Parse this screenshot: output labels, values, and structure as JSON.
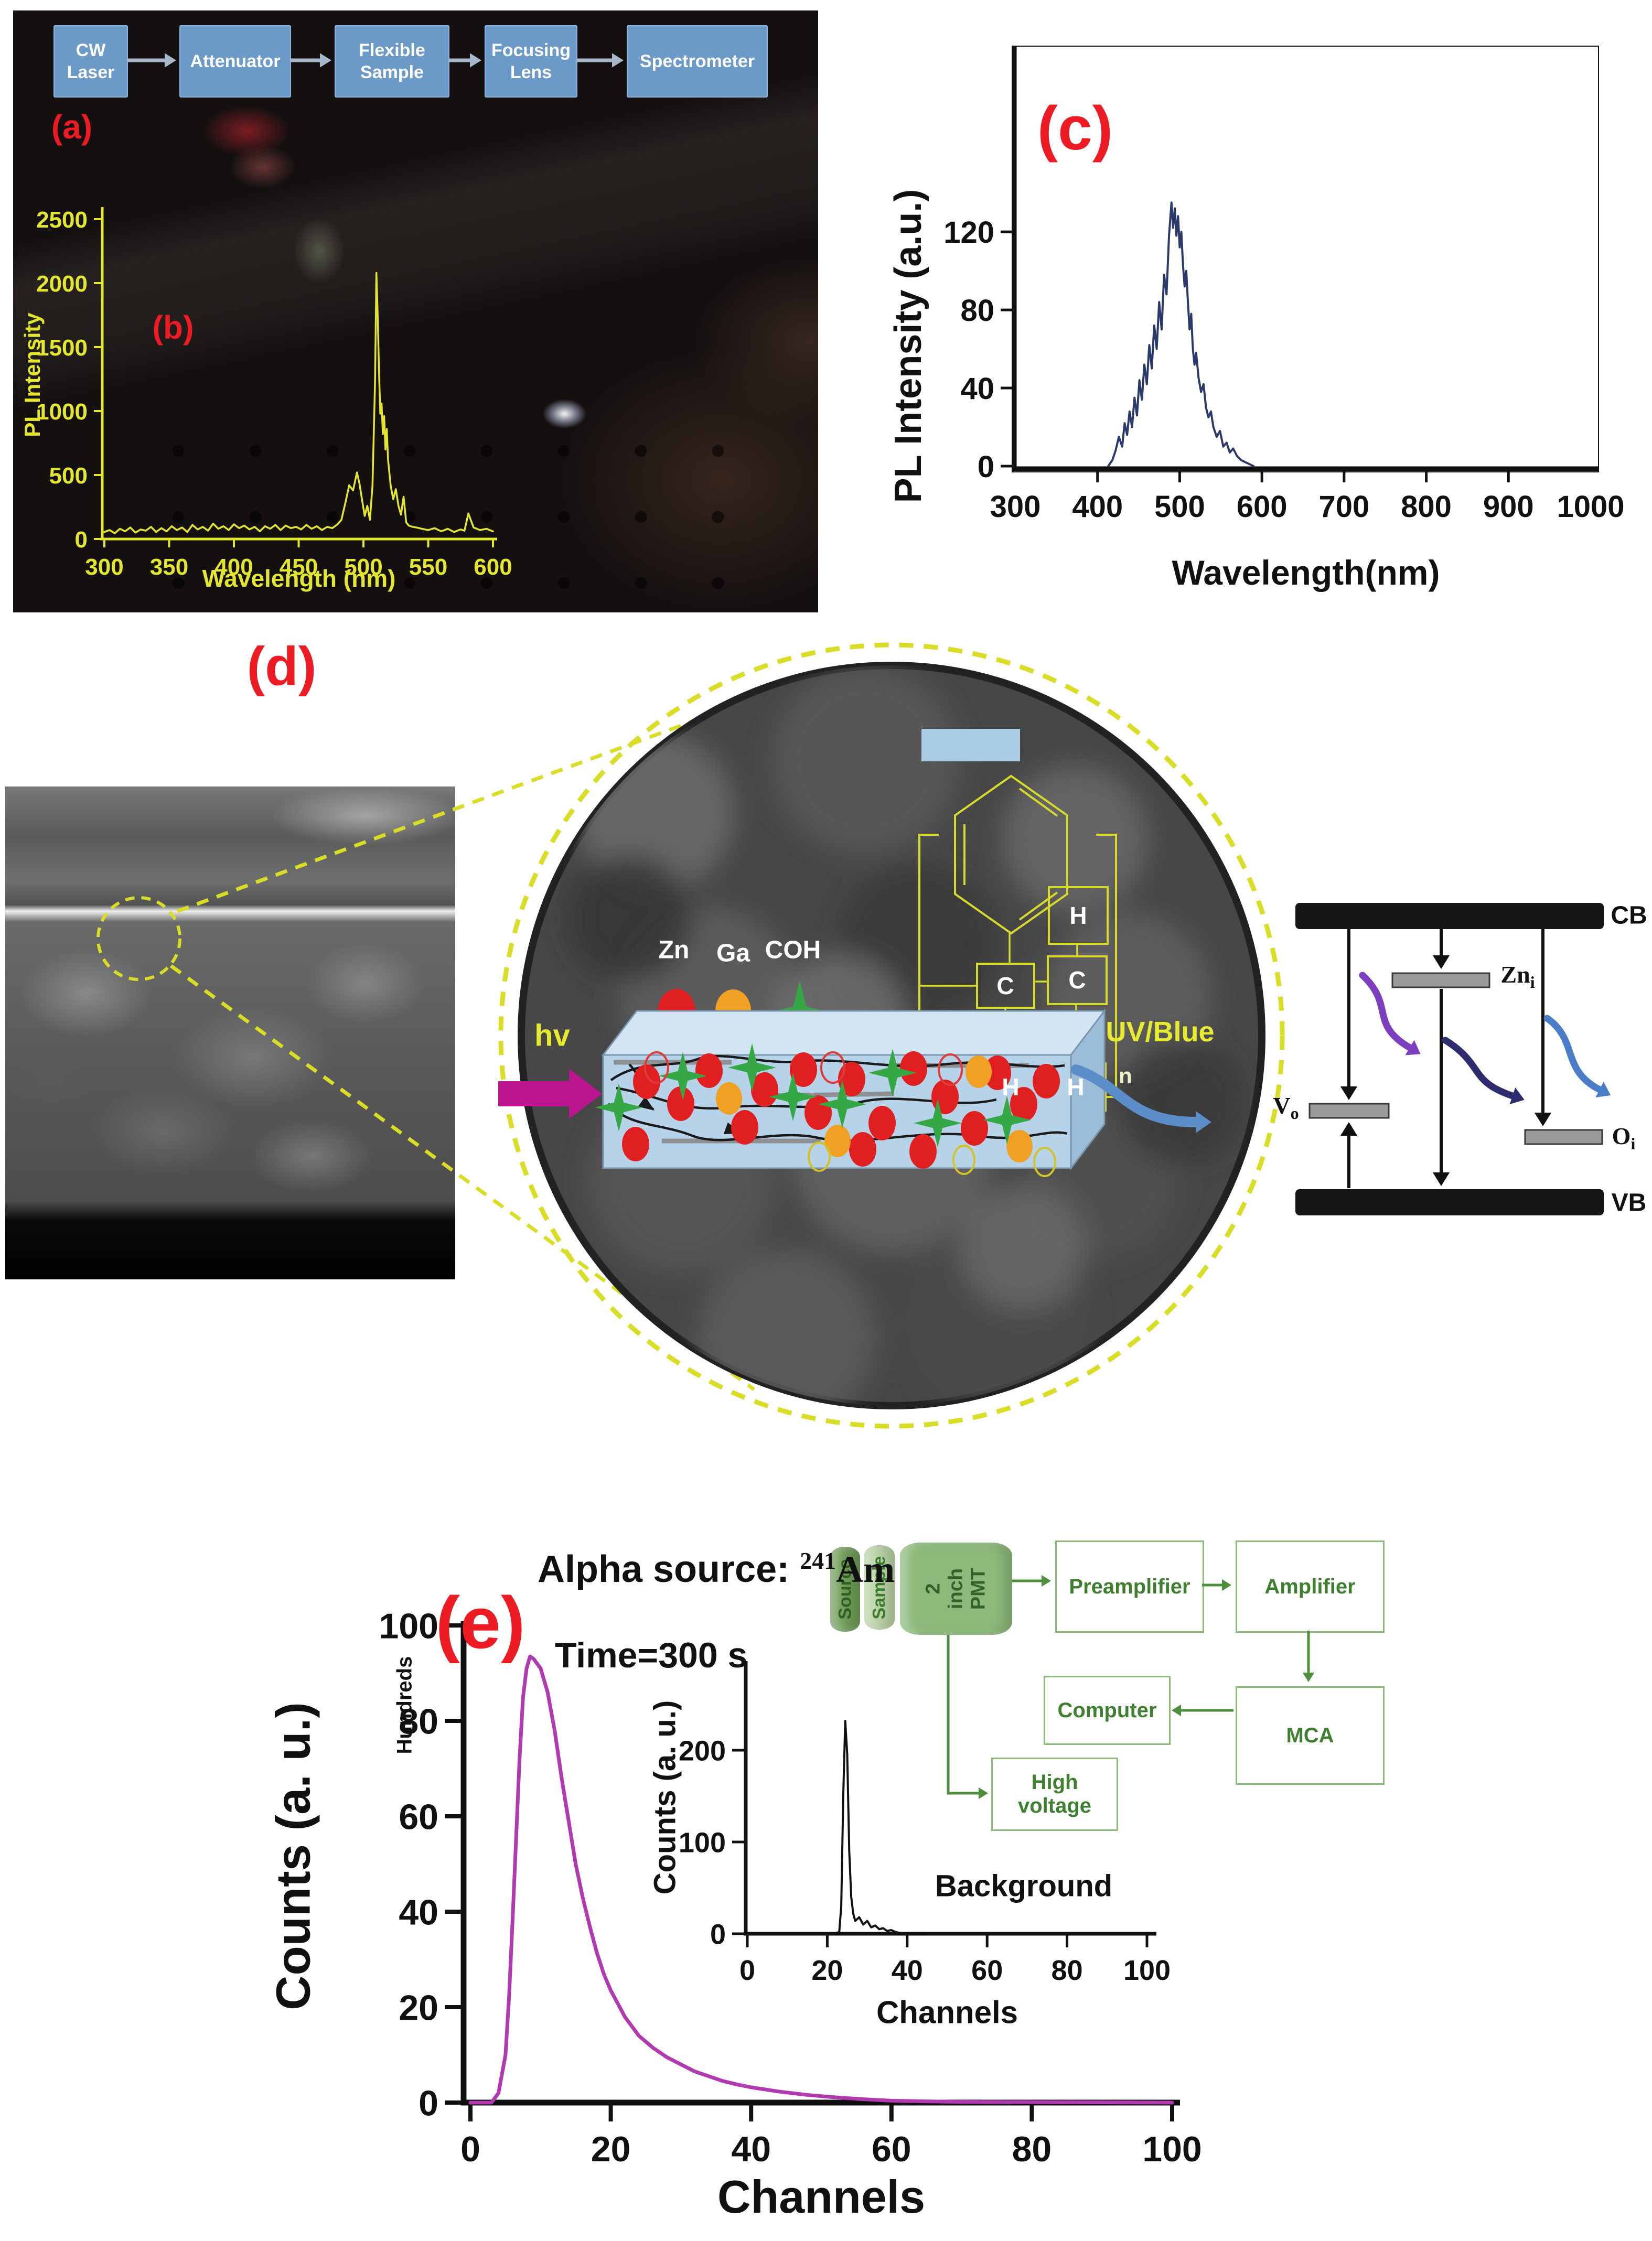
{
  "panel_a": {
    "label": "(a)",
    "boxes": [
      "CW\nLaser",
      "Attenuator",
      "Flexible\nSample",
      "Focusing\nLens",
      "Spectrometer"
    ]
  },
  "panel_b": {
    "label": "(b)",
    "ylabel": "PL Intensity",
    "xlabel": "Wavelength (nm)"
  },
  "panel_c": {
    "label": "(c)",
    "ylabel": "PL Intensity (a.u.)",
    "xlabel": "Wavelength(nm)"
  },
  "panel_d": {
    "label": "(d)",
    "legend": {
      "zn": "Zn",
      "ga": "Ga",
      "coh": "COH"
    },
    "hv": "hv",
    "uv_blue": "UV/Blue",
    "polymer": {
      "h_top": "H",
      "c_left": "C",
      "c_right": "C",
      "h_bl": "H",
      "h_br": "H",
      "n": "n"
    },
    "energy": {
      "cb": "CB",
      "vb": "VB",
      "zni_main": "Zn",
      "zni_sub": "i",
      "vo_main": "V",
      "vo_sub": "o",
      "oi_main": "O",
      "oi_sub": "i"
    },
    "colors": {
      "yellow": "#d9dd26",
      "magenta": "#bb1690",
      "blue_arrow": "#5b8dc8",
      "purple": "#7b3fbf",
      "navy": "#2c2c6e",
      "blue": "#4a7cc7"
    }
  },
  "panel_e": {
    "label": "(e)",
    "title_main": "Alpha source:",
    "isotope_sup": "241",
    "isotope": "Am",
    "time": "Time=300 s",
    "main_chart": {
      "ylabel": "Counts (a. u.)",
      "y_units": "Hundreds",
      "xlabel": "Channels"
    },
    "inset_chart": {
      "ylabel": "Counts (a. u.)",
      "xlabel": "Channels",
      "annotation": "Background"
    },
    "blocks": {
      "source": "Source",
      "sample": "Sample",
      "pmt": "2 inch\nPMT",
      "preamplifier": "Preamplifier",
      "amplifier": "Amplifier",
      "mca": "MCA",
      "computer": "Computer",
      "high_voltage": "High voltage"
    }
  },
  "chart_data": [
    {
      "id": "b",
      "type": "line",
      "title": "",
      "xlabel": "Wavelength (nm)",
      "ylabel": "PL Intensity",
      "xlim": [
        300,
        600
      ],
      "ylim": [
        0,
        2500
      ],
      "grid": false,
      "legend_position": "none",
      "xticks": [
        300,
        350,
        400,
        450,
        500,
        550,
        600
      ],
      "yticks": [
        0,
        500,
        1000,
        1500,
        2000,
        2500
      ],
      "line_color": "#e3e62c",
      "x": [
        300,
        304,
        308,
        312,
        316,
        320,
        324,
        328,
        332,
        336,
        340,
        344,
        348,
        352,
        356,
        360,
        364,
        368,
        372,
        376,
        380,
        384,
        388,
        392,
        396,
        400,
        404,
        408,
        412,
        416,
        420,
        424,
        428,
        432,
        436,
        440,
        444,
        448,
        452,
        456,
        460,
        464,
        468,
        472,
        476,
        480,
        483,
        486,
        489,
        492,
        495,
        497,
        499,
        501,
        503,
        505,
        507,
        509,
        510,
        511,
        512,
        513,
        514,
        515,
        516,
        517,
        518,
        519,
        521,
        523,
        525,
        527,
        529,
        531,
        533,
        535,
        538,
        541,
        545,
        550,
        555,
        560,
        565,
        570,
        575,
        578,
        581,
        585,
        590,
        595,
        600
      ],
      "y": [
        55,
        70,
        45,
        80,
        60,
        90,
        50,
        75,
        65,
        95,
        55,
        85,
        60,
        100,
        70,
        90,
        55,
        110,
        75,
        95,
        65,
        120,
        80,
        100,
        70,
        115,
        85,
        105,
        75,
        95,
        60,
        100,
        80,
        110,
        70,
        105,
        85,
        95,
        75,
        110,
        80,
        100,
        70,
        95,
        85,
        115,
        150,
        280,
        420,
        380,
        520,
        430,
        300,
        180,
        260,
        150,
        420,
        1250,
        2080,
        1750,
        1320,
        980,
        1060,
        820,
        960,
        700,
        860,
        620,
        420,
        310,
        390,
        260,
        190,
        330,
        130,
        105,
        95,
        90,
        80,
        70,
        85,
        60,
        80,
        55,
        75,
        65,
        200,
        90,
        70,
        80,
        60
      ]
    },
    {
      "id": "c",
      "type": "line",
      "title": "",
      "xlabel": "Wavelength(nm)",
      "ylabel": "PL Intensity (a.u.)",
      "xlim": [
        300,
        1000
      ],
      "ylim": [
        0,
        145
      ],
      "grid": false,
      "legend_position": "none",
      "xticks": [
        300,
        400,
        500,
        600,
        700,
        800,
        900,
        1000
      ],
      "yticks": [
        0,
        40,
        80,
        120
      ],
      "line_color": "#2b3a6b",
      "x": [
        413,
        418,
        422,
        426,
        430,
        433,
        436,
        439,
        442,
        445,
        448,
        451,
        454,
        457,
        460,
        463,
        466,
        469,
        472,
        475,
        478,
        481,
        484,
        487,
        490,
        492,
        494,
        496,
        498,
        500,
        502,
        504,
        506,
        508,
        510,
        512,
        514,
        516,
        518,
        520,
        523,
        526,
        529,
        532,
        535,
        538,
        541,
        545,
        549,
        553,
        557,
        561,
        565,
        570,
        575,
        580,
        585,
        590
      ],
      "y": [
        0,
        3,
        8,
        15,
        10,
        22,
        16,
        28,
        20,
        35,
        26,
        44,
        34,
        52,
        42,
        62,
        50,
        72,
        60,
        84,
        70,
        98,
        88,
        118,
        135,
        122,
        132,
        118,
        128,
        112,
        120,
        103,
        92,
        100,
        84,
        70,
        78,
        60,
        52,
        58,
        45,
        38,
        42,
        30,
        25,
        28,
        20,
        15,
        18,
        10,
        12,
        7,
        9,
        5,
        3,
        2,
        1,
        0
      ]
    },
    {
      "id": "e_main",
      "type": "line",
      "title": "Alpha source: 241Am, Time=300 s",
      "xlabel": "Channels",
      "ylabel": "Counts (a. u.) Hundreds",
      "xlim": [
        0,
        100
      ],
      "ylim": [
        0,
        100
      ],
      "grid": false,
      "legend_position": "none",
      "xticks": [
        0,
        20,
        40,
        60,
        80,
        100
      ],
      "yticks": [
        0,
        20,
        40,
        60,
        80,
        100
      ],
      "line_color": "#b23ab0",
      "x": [
        0,
        3,
        4,
        5,
        5.5,
        6,
        6.5,
        7,
        7.5,
        8,
        8.5,
        9,
        10,
        11,
        12,
        13,
        14,
        15,
        16,
        17,
        18,
        19,
        20,
        22,
        24,
        26,
        28,
        30,
        32,
        34,
        36,
        38,
        40,
        44,
        48,
        52,
        56,
        60,
        65,
        70,
        80,
        90,
        100
      ],
      "y": [
        0,
        0,
        2,
        10,
        22,
        38,
        55,
        72,
        85,
        91,
        93.5,
        93,
        91,
        86,
        78,
        68,
        59,
        50,
        43,
        37,
        31.5,
        27,
        23.5,
        18,
        14,
        11.5,
        9.5,
        8,
        6.5,
        5.5,
        4.5,
        3.8,
        3.2,
        2.3,
        1.6,
        1.1,
        0.7,
        0.4,
        0.25,
        0.15,
        0.1,
        0.05,
        0
      ]
    },
    {
      "id": "e_inset",
      "type": "line",
      "title": "Background",
      "xlabel": "Channels",
      "ylabel": "Counts (a. u.)",
      "xlim": [
        0,
        100
      ],
      "ylim": [
        0,
        240
      ],
      "grid": false,
      "legend_position": "none",
      "xticks": [
        0,
        20,
        40,
        60,
        80,
        100
      ],
      "yticks": [
        0,
        100,
        200
      ],
      "line_color": "#111111",
      "x": [
        0,
        20,
        22,
        23,
        23.5,
        24,
        24.5,
        25,
        25.5,
        26,
        26.5,
        27,
        28,
        29,
        30,
        31,
        32,
        33,
        34,
        35,
        36,
        37,
        38,
        40,
        45,
        50,
        60,
        80,
        100
      ],
      "y": [
        0,
        0,
        0,
        2,
        30,
        150,
        232,
        195,
        90,
        40,
        22,
        14,
        18,
        10,
        14,
        7,
        9,
        5,
        6,
        3,
        4,
        2,
        1,
        0.5,
        0,
        0,
        0,
        0,
        0
      ]
    }
  ],
  "slab": {
    "red_dots": [
      [
        1233,
        2063
      ],
      [
        1298,
        2105
      ],
      [
        1352,
        2042
      ],
      [
        1420,
        2150
      ],
      [
        1458,
        2078
      ],
      [
        1532,
        2040
      ],
      [
        1560,
        2122
      ],
      [
        1624,
        2058
      ],
      [
        1682,
        2142
      ],
      [
        1742,
        2038
      ],
      [
        1802,
        2092
      ],
      [
        1858,
        2152
      ],
      [
        1902,
        2046
      ],
      [
        1952,
        2106
      ],
      [
        1995,
        2062
      ],
      [
        1212,
        2182
      ],
      [
        1645,
        2192
      ],
      [
        1760,
        2196
      ]
    ],
    "orange_dots": [
      [
        1390,
        2095
      ],
      [
        1597,
        2176
      ],
      [
        1866,
        2044
      ],
      [
        1944,
        2186
      ]
    ],
    "green_stars": [
      [
        1180,
        2112
      ],
      [
        1302,
        2052
      ],
      [
        1434,
        2036
      ],
      [
        1512,
        2092
      ],
      [
        1606,
        2106
      ],
      [
        1702,
        2046
      ],
      [
        1788,
        2142
      ],
      [
        1920,
        2136
      ]
    ],
    "open_red": [
      [
        1252,
        2036
      ],
      [
        1588,
        2036
      ],
      [
        1812,
        2040
      ]
    ],
    "open_yellow": [
      [
        1562,
        2206
      ],
      [
        1838,
        2212
      ],
      [
        1992,
        2216
      ]
    ]
  }
}
